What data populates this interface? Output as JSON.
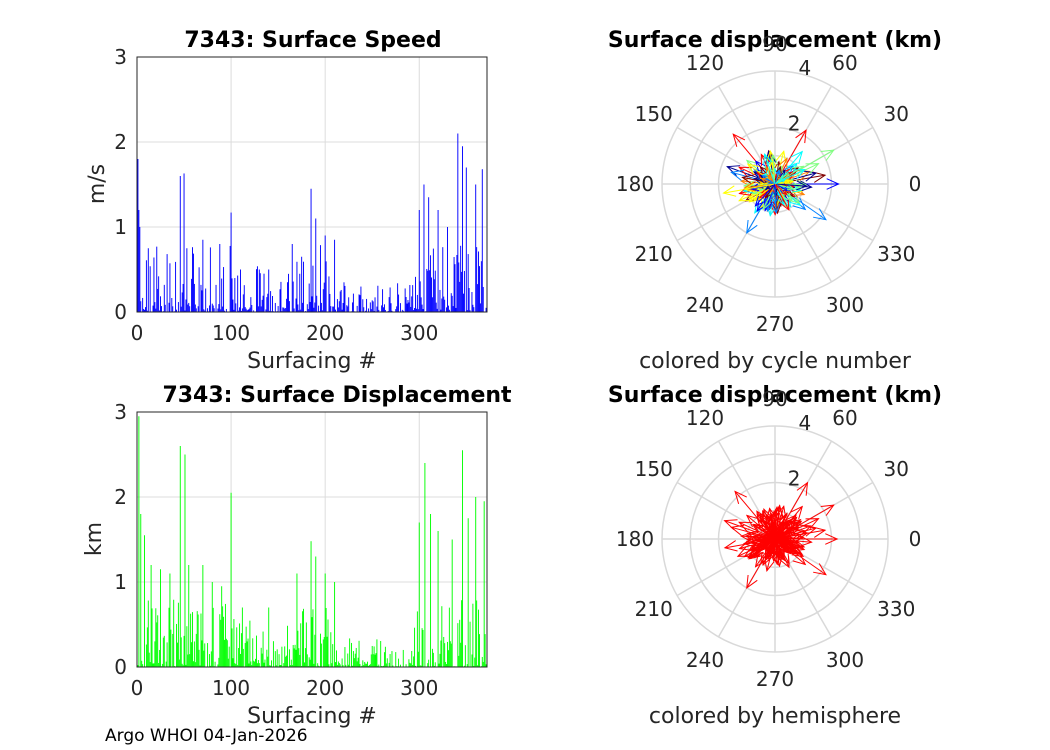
{
  "figure": {
    "footer": "Argo WHOI 04-Jan-2026"
  },
  "chart_data": [
    {
      "id": "speed",
      "type": "bar",
      "title": "7343: Surface Speed",
      "xlabel": "Surfacing #",
      "ylabel": "m/s",
      "xlim": [
        0,
        372
      ],
      "ylim": [
        0,
        3
      ],
      "xticks": [
        "0",
        "100",
        "200",
        "300"
      ],
      "yticks": [
        "0",
        "1",
        "2",
        "3"
      ],
      "color": "#0000ff",
      "n": 372,
      "peaks": [
        [
          1,
          1.8
        ],
        [
          2,
          1.2
        ],
        [
          3,
          1.0
        ],
        [
          12,
          0.75
        ],
        [
          46,
          1.6
        ],
        [
          50,
          1.63
        ],
        [
          53,
          0.75
        ],
        [
          70,
          0.85
        ],
        [
          88,
          0.8
        ],
        [
          100,
          1.17
        ],
        [
          110,
          0.5
        ],
        [
          130,
          0.5
        ],
        [
          140,
          0.5
        ],
        [
          165,
          0.8
        ],
        [
          175,
          0.65
        ],
        [
          185,
          1.45
        ],
        [
          190,
          1.1
        ],
        [
          200,
          0.9
        ],
        [
          210,
          0.85
        ],
        [
          300,
          1.2
        ],
        [
          305,
          1.5
        ],
        [
          310,
          1.35
        ],
        [
          320,
          1.2
        ],
        [
          330,
          1.0
        ],
        [
          341,
          2.1
        ],
        [
          346,
          1.95
        ],
        [
          350,
          1.7
        ],
        [
          360,
          1.5
        ],
        [
          367,
          1.68
        ]
      ]
    },
    {
      "id": "displacement",
      "type": "bar",
      "title": "7343: Surface Displacement",
      "xlabel": "Surfacing #",
      "ylabel": "km",
      "xlim": [
        0,
        372
      ],
      "ylim": [
        0,
        3
      ],
      "xticks": [
        "0",
        "100",
        "200",
        "300"
      ],
      "yticks": [
        "0",
        "1",
        "2",
        "3"
      ],
      "color": "#00ff00",
      "n": 372,
      "peaks": [
        [
          2,
          2.95
        ],
        [
          4,
          1.8
        ],
        [
          8,
          1.55
        ],
        [
          15,
          1.2
        ],
        [
          25,
          1.15
        ],
        [
          35,
          1.1
        ],
        [
          46,
          2.6
        ],
        [
          51,
          2.5
        ],
        [
          55,
          1.2
        ],
        [
          70,
          1.2
        ],
        [
          80,
          1.0
        ],
        [
          90,
          0.95
        ],
        [
          100,
          2.05
        ],
        [
          112,
          0.7
        ],
        [
          140,
          0.7
        ],
        [
          170,
          1.1
        ],
        [
          185,
          1.48
        ],
        [
          190,
          1.3
        ],
        [
          200,
          1.1
        ],
        [
          210,
          1.0
        ],
        [
          300,
          1.7
        ],
        [
          306,
          2.4
        ],
        [
          312,
          1.8
        ],
        [
          320,
          1.6
        ],
        [
          335,
          1.5
        ],
        [
          346,
          2.55
        ],
        [
          352,
          1.75
        ],
        [
          360,
          2.0
        ],
        [
          369,
          1.95
        ]
      ]
    },
    {
      "id": "polar-cycle",
      "type": "polar",
      "title": "Surface displacement (km)",
      "caption": "colored by cycle number",
      "rlim": [
        0,
        4
      ],
      "rticks": [
        "2",
        "4"
      ],
      "angle_labels": [
        "0",
        "30",
        "60",
        "90",
        "120",
        "150",
        "180",
        "210",
        "240",
        "270",
        "300",
        "330"
      ],
      "colormap": [
        "#00008f",
        "#0000ff",
        "#0080ff",
        "#00ffff",
        "#80ff80",
        "#ffff00",
        "#ff8000",
        "#ff0000",
        "#800000"
      ],
      "vectors": [
        [
          60,
          2.2
        ],
        [
          30,
          2.4
        ],
        [
          0,
          2.25
        ],
        [
          -35,
          2.2
        ],
        [
          -120,
          2.0
        ],
        [
          -150,
          1.2
        ],
        [
          130,
          2.3
        ],
        [
          160,
          1.8
        ],
        [
          190,
          1.85
        ],
        [
          205,
          1.4
        ],
        [
          235,
          1.25
        ],
        [
          275,
          0.9
        ],
        [
          10,
          1.8
        ],
        [
          20,
          1.3
        ],
        [
          50,
          1.5
        ],
        [
          80,
          0.8
        ],
        [
          100,
          1.1
        ],
        [
          140,
          1.3
        ],
        [
          175,
          1.2
        ],
        [
          220,
          0.9
        ],
        [
          250,
          0.7
        ],
        [
          300,
          1.0
        ],
        [
          320,
          1.4
        ],
        [
          340,
          1.1
        ],
        [
          5,
          0.6
        ],
        [
          45,
          0.9
        ],
        [
          120,
          0.7
        ],
        [
          170,
          0.5
        ],
        [
          200,
          0.6
        ],
        [
          260,
          0.5
        ],
        [
          310,
          0.6
        ],
        [
          350,
          0.7
        ],
        [
          15,
          1.5
        ],
        [
          35,
          1.0
        ],
        [
          75,
          1.2
        ],
        [
          155,
          1.4
        ],
        [
          185,
          1.0
        ],
        [
          215,
          1.1
        ],
        [
          285,
          0.8
        ],
        [
          330,
          0.9
        ],
        [
          65,
          1.0
        ],
        [
          95,
          0.6
        ],
        [
          145,
          0.9
        ],
        [
          195,
          1.3
        ],
        [
          240,
          1.0
        ],
        [
          295,
          0.7
        ],
        [
          355,
          1.3
        ],
        [
          25,
          1.7
        ],
        [
          110,
          0.9
        ],
        [
          165,
          1.6
        ]
      ]
    },
    {
      "id": "polar-hemisphere",
      "type": "polar",
      "title": "Surface displacement (km)",
      "caption": "colored by hemisphere",
      "rlim": [
        0,
        4
      ],
      "rticks": [
        "2",
        "4"
      ],
      "angle_labels": [
        "0",
        "30",
        "60",
        "90",
        "120",
        "150",
        "180",
        "210",
        "240",
        "270",
        "300",
        "330"
      ],
      "color": "#ff0000",
      "vectors": [
        [
          60,
          2.3
        ],
        [
          30,
          2.4
        ],
        [
          0,
          2.2
        ],
        [
          -35,
          2.2
        ],
        [
          -120,
          2.0
        ],
        [
          -150,
          1.25
        ],
        [
          130,
          2.2
        ],
        [
          160,
          1.9
        ],
        [
          190,
          1.8
        ],
        [
          205,
          1.45
        ],
        [
          235,
          1.2
        ],
        [
          275,
          0.9
        ],
        [
          10,
          1.8
        ],
        [
          20,
          1.35
        ],
        [
          50,
          1.5
        ],
        [
          80,
          0.8
        ],
        [
          100,
          1.1
        ],
        [
          140,
          1.3
        ],
        [
          175,
          1.2
        ],
        [
          220,
          0.9
        ],
        [
          250,
          0.7
        ],
        [
          300,
          1.0
        ],
        [
          320,
          1.4
        ],
        [
          340,
          1.1
        ],
        [
          5,
          0.6
        ],
        [
          45,
          0.9
        ],
        [
          120,
          0.7
        ],
        [
          170,
          0.5
        ],
        [
          200,
          0.6
        ],
        [
          260,
          0.5
        ],
        [
          310,
          0.6
        ],
        [
          350,
          0.7
        ],
        [
          15,
          1.5
        ],
        [
          35,
          1.0
        ],
        [
          75,
          1.2
        ],
        [
          155,
          1.4
        ],
        [
          185,
          1.0
        ],
        [
          215,
          1.1
        ],
        [
          285,
          0.8
        ],
        [
          330,
          0.9
        ],
        [
          65,
          1.0
        ],
        [
          95,
          0.6
        ],
        [
          145,
          0.9
        ],
        [
          195,
          1.3
        ],
        [
          240,
          1.0
        ],
        [
          295,
          0.7
        ],
        [
          355,
          1.3
        ],
        [
          25,
          1.7
        ],
        [
          110,
          0.9
        ],
        [
          165,
          1.6
        ]
      ]
    }
  ]
}
